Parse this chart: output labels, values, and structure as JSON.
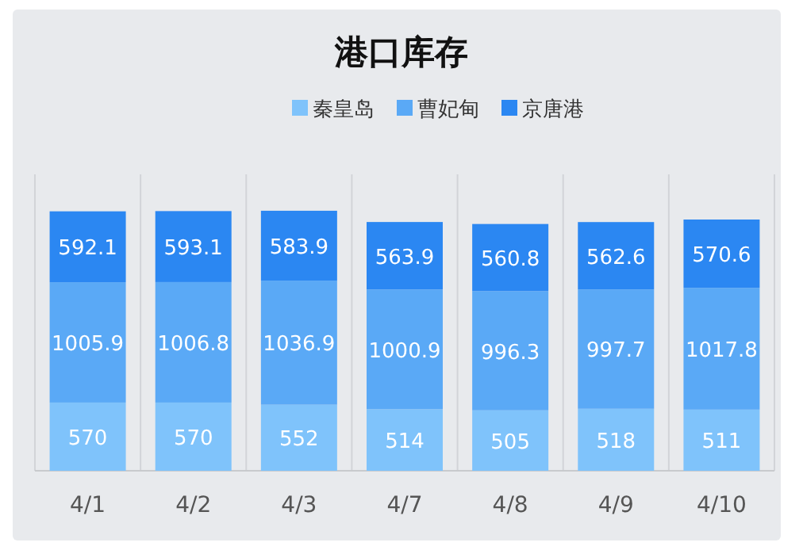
{
  "chart_data": {
    "type": "bar",
    "title": "港口库存",
    "stacked": true,
    "data_labels": true,
    "legend": "top",
    "grid": "x",
    "categories": [
      "4/1",
      "4/2",
      "4/3",
      "4/7",
      "4/8",
      "4/9",
      "4/10"
    ],
    "series": [
      {
        "name": "秦皇岛",
        "color": "#7fc3fb",
        "values": [
          570,
          570,
          552,
          514,
          505,
          518,
          511
        ]
      },
      {
        "name": "曹妃甸",
        "color": "#5aa9f6",
        "values": [
          1005.9,
          1006.8,
          1036.9,
          1000.9,
          996.3,
          997.7,
          1017.8
        ]
      },
      {
        "name": "京唐港",
        "color": "#2b87f2",
        "values": [
          592.1,
          593.1,
          583.9,
          563.9,
          560.8,
          562.6,
          570.6
        ]
      }
    ]
  }
}
